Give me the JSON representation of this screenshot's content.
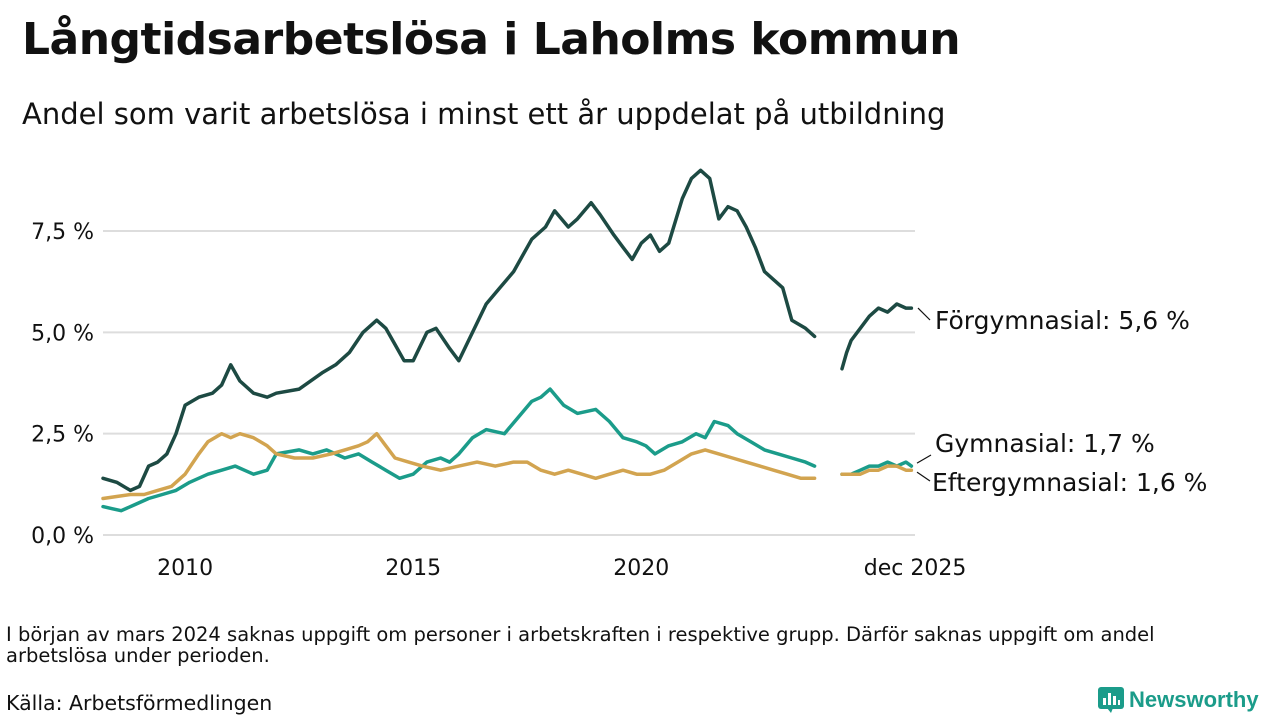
{
  "title": "Långtidsarbetslösa i Laholms kommun",
  "subtitle": "Andel som varit arbetslösa i minst ett år uppdelat på utbildning",
  "note": "I början av mars 2024 saknas uppgift om personer i arbetskraften i respektive grupp. Därför saknas uppgift om andel arbetslösa under perioden.",
  "source": "Källa: Arbetsförmedlingen",
  "brand": {
    "name": "Newsworthy",
    "color": "#1b9c8a"
  },
  "chart_data": {
    "type": "line",
    "title": "Långtidsarbetslösa i Laholms kommun",
    "subtitle": "Andel som varit arbetslösa i minst ett år uppdelat på utbildning",
    "xlabel": "",
    "ylabel": "",
    "xlim": [
      2008.2,
      2026.0
    ],
    "ylim": [
      0,
      9.5
    ],
    "grid": true,
    "legend": "direct labels at line ends (right)",
    "y_ticks": [
      {
        "value": 0,
        "label": "0,0 %"
      },
      {
        "value": 2.5,
        "label": "2,5 %"
      },
      {
        "value": 5,
        "label": "5,0 %"
      },
      {
        "value": 7.5,
        "label": "7,5 %"
      }
    ],
    "x_ticks": [
      {
        "value": 2010,
        "label": "2010"
      },
      {
        "value": 2015,
        "label": "2015"
      },
      {
        "value": 2020,
        "label": "2020"
      },
      {
        "value": 2025.92,
        "label": "dec 2025"
      }
    ],
    "gap": [
      2023.9,
      2024.4
    ],
    "series": [
      {
        "name": "Förgymnasial",
        "end_label": "Förgymnasial: 5,6 %",
        "color": "#1d4a43",
        "x": [
          2008.2,
          2008.5,
          2008.8,
          2009.0,
          2009.2,
          2009.4,
          2009.6,
          2009.8,
          2010.0,
          2010.3,
          2010.6,
          2010.8,
          2011.0,
          2011.2,
          2011.5,
          2011.8,
          2012.0,
          2012.5,
          2013.0,
          2013.3,
          2013.6,
          2013.9,
          2014.2,
          2014.4,
          2014.6,
          2014.8,
          2015.0,
          2015.3,
          2015.5,
          2015.8,
          2016.0,
          2016.3,
          2016.6,
          2016.9,
          2017.2,
          2017.4,
          2017.6,
          2017.9,
          2018.1,
          2018.4,
          2018.6,
          2018.9,
          2019.1,
          2019.4,
          2019.6,
          2019.8,
          2020.0,
          2020.2,
          2020.4,
          2020.6,
          2020.9,
          2021.1,
          2021.3,
          2021.5,
          2021.7,
          2021.9,
          2022.1,
          2022.3,
          2022.5,
          2022.7,
          2022.9,
          2023.1,
          2023.3,
          2023.6,
          2023.8,
          2024.4,
          2024.5,
          2024.6,
          2024.8,
          2025.0,
          2025.2,
          2025.4,
          2025.6,
          2025.8,
          2025.92
        ],
        "y": [
          1.4,
          1.3,
          1.1,
          1.2,
          1.7,
          1.8,
          2.0,
          2.5,
          3.2,
          3.4,
          3.5,
          3.7,
          4.2,
          3.8,
          3.5,
          3.4,
          3.5,
          3.6,
          4.0,
          4.2,
          4.5,
          5.0,
          5.3,
          5.1,
          4.7,
          4.3,
          4.3,
          5.0,
          5.1,
          4.6,
          4.3,
          5.0,
          5.7,
          6.1,
          6.5,
          6.9,
          7.3,
          7.6,
          8.0,
          7.6,
          7.8,
          8.2,
          7.9,
          7.4,
          7.1,
          6.8,
          7.2,
          7.4,
          7.0,
          7.2,
          8.3,
          8.8,
          9.0,
          8.8,
          7.8,
          8.1,
          8.0,
          7.6,
          7.1,
          6.5,
          6.3,
          6.1,
          5.3,
          5.1,
          4.9,
          4.1,
          4.5,
          4.8,
          5.1,
          5.4,
          5.6,
          5.5,
          5.7,
          5.6,
          5.6
        ]
      },
      {
        "name": "Gymnasial",
        "end_label": "Gymnasial: 1,7 %",
        "color": "#1b9c8a",
        "x": [
          2008.2,
          2008.4,
          2008.6,
          2008.9,
          2009.2,
          2009.5,
          2009.8,
          2010.1,
          2010.5,
          2010.8,
          2011.1,
          2011.3,
          2011.5,
          2011.8,
          2012.0,
          2012.5,
          2012.8,
          2013.1,
          2013.5,
          2013.8,
          2014.1,
          2014.4,
          2014.7,
          2015.0,
          2015.3,
          2015.6,
          2015.8,
          2016.0,
          2016.3,
          2016.6,
          2017.0,
          2017.3,
          2017.6,
          2017.8,
          2018.0,
          2018.3,
          2018.6,
          2019.0,
          2019.3,
          2019.6,
          2019.9,
          2020.1,
          2020.3,
          2020.6,
          2020.9,
          2021.2,
          2021.4,
          2021.6,
          2021.9,
          2022.1,
          2022.4,
          2022.7,
          2023.0,
          2023.3,
          2023.6,
          2023.8,
          2024.4,
          2024.6,
          2024.8,
          2025.0,
          2025.2,
          2025.4,
          2025.6,
          2025.8,
          2025.92
        ],
        "y": [
          0.7,
          0.65,
          0.6,
          0.75,
          0.9,
          1.0,
          1.1,
          1.3,
          1.5,
          1.6,
          1.7,
          1.6,
          1.5,
          1.6,
          2.0,
          2.1,
          2.0,
          2.1,
          1.9,
          2.0,
          1.8,
          1.6,
          1.4,
          1.5,
          1.8,
          1.9,
          1.8,
          2.0,
          2.4,
          2.6,
          2.5,
          2.9,
          3.3,
          3.4,
          3.6,
          3.2,
          3.0,
          3.1,
          2.8,
          2.4,
          2.3,
          2.2,
          2.0,
          2.2,
          2.3,
          2.5,
          2.4,
          2.8,
          2.7,
          2.5,
          2.3,
          2.1,
          2.0,
          1.9,
          1.8,
          1.7,
          1.5,
          1.5,
          1.6,
          1.7,
          1.7,
          1.8,
          1.7,
          1.8,
          1.7
        ]
      },
      {
        "name": "Eftergymnasial",
        "end_label": "Eftergymnasial: 1,6 %",
        "color": "#d2a450",
        "x": [
          2008.2,
          2008.5,
          2008.8,
          2009.1,
          2009.4,
          2009.7,
          2010.0,
          2010.3,
          2010.5,
          2010.8,
          2011.0,
          2011.2,
          2011.5,
          2011.8,
          2012.0,
          2012.4,
          2012.8,
          2013.2,
          2013.5,
          2013.8,
          2014.0,
          2014.2,
          2014.4,
          2014.6,
          2014.9,
          2015.2,
          2015.6,
          2016.0,
          2016.4,
          2016.8,
          2017.2,
          2017.5,
          2017.8,
          2018.1,
          2018.4,
          2018.7,
          2019.0,
          2019.3,
          2019.6,
          2019.9,
          2020.2,
          2020.5,
          2020.8,
          2021.1,
          2021.4,
          2021.7,
          2022.0,
          2022.3,
          2022.6,
          2022.9,
          2023.2,
          2023.5,
          2023.8,
          2024.4,
          2024.6,
          2024.8,
          2025.0,
          2025.2,
          2025.4,
          2025.6,
          2025.8,
          2025.92
        ],
        "y": [
          0.9,
          0.95,
          1.0,
          1.0,
          1.1,
          1.2,
          1.5,
          2.0,
          2.3,
          2.5,
          2.4,
          2.5,
          2.4,
          2.2,
          2.0,
          1.9,
          1.9,
          2.0,
          2.1,
          2.2,
          2.3,
          2.5,
          2.2,
          1.9,
          1.8,
          1.7,
          1.6,
          1.7,
          1.8,
          1.7,
          1.8,
          1.8,
          1.6,
          1.5,
          1.6,
          1.5,
          1.4,
          1.5,
          1.6,
          1.5,
          1.5,
          1.6,
          1.8,
          2.0,
          2.1,
          2.0,
          1.9,
          1.8,
          1.7,
          1.6,
          1.5,
          1.4,
          1.4,
          1.5,
          1.5,
          1.5,
          1.6,
          1.6,
          1.7,
          1.7,
          1.6,
          1.6
        ]
      }
    ]
  }
}
